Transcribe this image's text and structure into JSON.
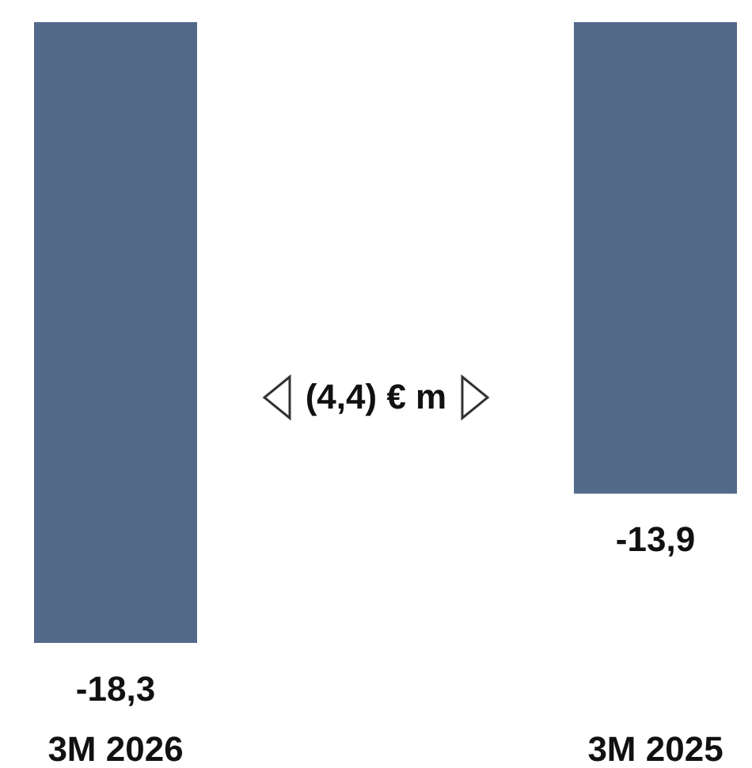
{
  "chart_data": {
    "type": "bar",
    "categories": [
      "3M 2026",
      "3M 2025"
    ],
    "values": [
      -18.3,
      -13.9
    ],
    "value_labels": [
      "-18,3",
      "-13,9"
    ],
    "color": "#52698a",
    "annotations": [
      "(4,4) € m"
    ]
  }
}
